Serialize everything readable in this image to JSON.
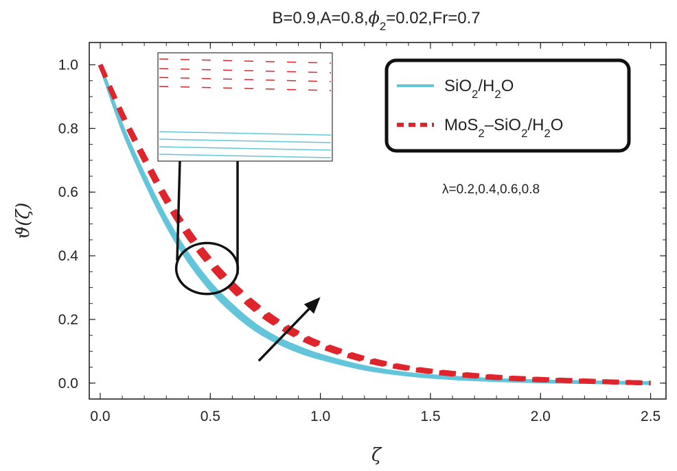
{
  "chart_data": {
    "type": "line",
    "title": "B=0.9,A=0.8,ϕ₂=0.02,Fr=0.7",
    "title_parts": [
      "B=0.9,A=0.8,",
      "ϕ",
      "2",
      "=0.02,Fr=0.7"
    ],
    "xlabel": "ζ",
    "ylabel": "ϑ(ζ)",
    "xlim": [
      -0.05,
      2.57
    ],
    "ylim": [
      -0.05,
      1.07
    ],
    "x_ticks": [
      0.0,
      0.5,
      1.0,
      1.5,
      2.0,
      2.5
    ],
    "x_tick_labels": [
      "0.0",
      "0.5",
      "1.0",
      "1.5",
      "2.0",
      "2.5"
    ],
    "y_ticks": [
      0.0,
      0.2,
      0.4,
      0.6,
      0.8,
      1.0
    ],
    "y_tick_labels": [
      "0.0",
      "0.2",
      "0.4",
      "0.6",
      "0.8",
      "1.0"
    ],
    "annotation": "λ=0.2,0.4,0.6,0.8",
    "lambda_values": [
      0.2,
      0.4,
      0.6,
      0.8
    ],
    "legend": {
      "position": "top-right",
      "entries": [
        {
          "name": "SiO₂/H₂O",
          "parts": [
            "SiO",
            "2",
            "/H",
            "2",
            "O"
          ],
          "style": "solid",
          "color": "#62c5da"
        },
        {
          "name": "MoS₂–SiO₂/H₂O",
          "parts": [
            "MoS",
            "2",
            "–SiO",
            "2",
            "/H",
            "2",
            "O"
          ],
          "style": "dashed",
          "color": "#e0242c"
        }
      ]
    },
    "x": [
      0.0,
      0.1,
      0.2,
      0.3,
      0.4,
      0.5,
      0.6,
      0.7,
      0.8,
      0.9,
      1.0,
      1.2,
      1.4,
      1.6,
      1.8,
      2.0,
      2.2,
      2.5
    ],
    "series": [
      {
        "name": "SiO₂/H₂O λ=0.2",
        "style": "solid",
        "color": "#62c5da",
        "values": [
          1.0,
          0.8,
          0.64,
          0.5,
          0.385,
          0.295,
          0.225,
          0.17,
          0.13,
          0.1,
          0.078,
          0.045,
          0.026,
          0.015,
          0.009,
          0.005,
          0.003,
          0.0
        ]
      },
      {
        "name": "SiO₂/H₂O λ=0.4",
        "style": "solid",
        "color": "#62c5da",
        "values": [
          1.0,
          0.802,
          0.644,
          0.505,
          0.391,
          0.301,
          0.231,
          0.175,
          0.134,
          0.104,
          0.081,
          0.047,
          0.027,
          0.016,
          0.009,
          0.005,
          0.003,
          0.0
        ]
      },
      {
        "name": "SiO₂/H₂O λ=0.6",
        "style": "solid",
        "color": "#62c5da",
        "values": [
          1.0,
          0.804,
          0.648,
          0.51,
          0.397,
          0.307,
          0.237,
          0.18,
          0.138,
          0.108,
          0.084,
          0.049,
          0.028,
          0.017,
          0.01,
          0.006,
          0.003,
          0.0
        ]
      },
      {
        "name": "SiO₂/H₂O λ=0.8",
        "style": "solid",
        "color": "#62c5da",
        "values": [
          1.0,
          0.806,
          0.652,
          0.515,
          0.403,
          0.313,
          0.243,
          0.185,
          0.142,
          0.112,
          0.087,
          0.051,
          0.029,
          0.018,
          0.01,
          0.006,
          0.003,
          0.0
        ]
      },
      {
        "name": "MoS₂–SiO₂/H₂O λ=0.2",
        "style": "dashed",
        "color": "#e0242c",
        "values": [
          1.0,
          0.84,
          0.7,
          0.57,
          0.46,
          0.37,
          0.295,
          0.232,
          0.183,
          0.145,
          0.115,
          0.072,
          0.045,
          0.028,
          0.017,
          0.01,
          0.006,
          0.0
        ]
      },
      {
        "name": "MoS₂–SiO₂/H₂O λ=0.4",
        "style": "dashed",
        "color": "#e0242c",
        "values": [
          1.0,
          0.842,
          0.704,
          0.575,
          0.466,
          0.376,
          0.301,
          0.238,
          0.188,
          0.149,
          0.118,
          0.074,
          0.046,
          0.029,
          0.018,
          0.011,
          0.006,
          0.0
        ]
      },
      {
        "name": "MoS₂–SiO₂/H₂O λ=0.6",
        "style": "dashed",
        "color": "#e0242c",
        "values": [
          1.0,
          0.844,
          0.708,
          0.58,
          0.472,
          0.382,
          0.307,
          0.244,
          0.193,
          0.153,
          0.121,
          0.076,
          0.047,
          0.03,
          0.018,
          0.011,
          0.006,
          0.0
        ]
      },
      {
        "name": "MoS₂–SiO₂/H₂O λ=0.8",
        "style": "dashed",
        "color": "#e0242c",
        "values": [
          1.0,
          0.846,
          0.712,
          0.585,
          0.478,
          0.388,
          0.313,
          0.25,
          0.198,
          0.157,
          0.124,
          0.078,
          0.048,
          0.031,
          0.019,
          0.012,
          0.007,
          0.0
        ]
      }
    ],
    "arrow": {
      "from": [
        0.72,
        0.07
      ],
      "to": [
        1.0,
        0.27
      ]
    },
    "zoom_circle": {
      "center": [
        0.485,
        0.36
      ],
      "rx": 0.14,
      "ry": 0.08
    }
  }
}
